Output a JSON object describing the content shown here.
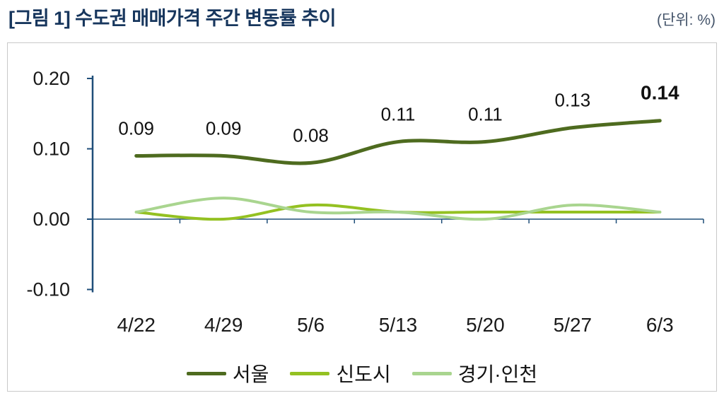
{
  "header": {
    "title": "[그림 1] 수도권 매매가격 주간 변동률 추이",
    "unit_label": "(단위: %)"
  },
  "chart_data": {
    "type": "line",
    "title": "[그림 1] 수도권 매매가격 주간 변동률 추이",
    "unit": "%",
    "categories": [
      "4/22",
      "4/29",
      "5/6",
      "5/13",
      "5/20",
      "5/27",
      "6/3"
    ],
    "series": [
      {
        "name": "서울",
        "color": "#4E6B1F",
        "width": 5,
        "values": [
          0.09,
          0.09,
          0.08,
          0.11,
          0.11,
          0.13,
          0.14
        ],
        "labels": [
          "0.09",
          "0.09",
          "0.08",
          "0.11",
          "0.11",
          "0.13",
          "0.14"
        ],
        "bold_last_label": true
      },
      {
        "name": "신도시",
        "color": "#94C122",
        "width": 4,
        "values": [
          0.01,
          0.0,
          0.02,
          0.01,
          0.01,
          0.01,
          0.01
        ]
      },
      {
        "name": "경기·인천",
        "color": "#A9D58F",
        "width": 4,
        "values": [
          0.01,
          0.03,
          0.01,
          0.01,
          0.0,
          0.02,
          0.01
        ]
      }
    ],
    "yticks": [
      0.2,
      0.1,
      0.0,
      -0.1
    ],
    "ytick_labels": [
      "0.20",
      "0.10",
      "0.00",
      "-0.10"
    ],
    "ylim": [
      -0.1,
      0.2
    ],
    "grid": false,
    "legend_position": "bottom",
    "axis_color": "#1F4E79"
  }
}
